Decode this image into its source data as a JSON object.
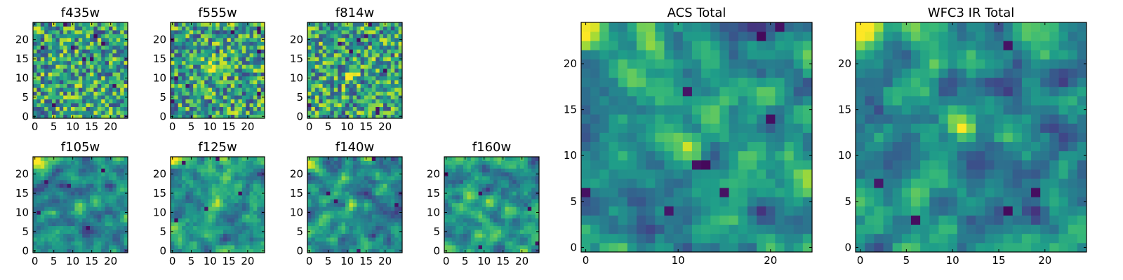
{
  "chart_data": [
    {
      "type": "heatmap",
      "title": "f435w",
      "grid_size": 25,
      "colormap": "viridis",
      "x_ticks": [
        0,
        5,
        10,
        15,
        20
      ],
      "y_ticks": [
        0,
        5,
        10,
        15,
        20
      ],
      "xlim": [
        0,
        25
      ],
      "ylim": [
        0,
        25
      ],
      "appearance": "uniform noise",
      "hotspot": null
    },
    {
      "type": "heatmap",
      "title": "f555w",
      "grid_size": 25,
      "colormap": "viridis",
      "x_ticks": [
        0,
        5,
        10,
        15,
        20
      ],
      "y_ticks": [
        0,
        5,
        10,
        15,
        20
      ],
      "xlim": [
        0,
        25
      ],
      "ylim": [
        0,
        25
      ],
      "appearance": "noise with faint central source",
      "hotspot": [
        11,
        12
      ]
    },
    {
      "type": "heatmap",
      "title": "f814w",
      "grid_size": 25,
      "colormap": "viridis",
      "x_ticks": [
        0,
        5,
        10,
        15,
        20
      ],
      "y_ticks": [
        0,
        5,
        10,
        15,
        20
      ],
      "xlim": [
        0,
        25
      ],
      "ylim": [
        0,
        25
      ],
      "appearance": "noise with central source",
      "hotspot": [
        11,
        11
      ]
    },
    {
      "type": "heatmap",
      "title": "f105w",
      "grid_size": 25,
      "colormap": "viridis",
      "x_ticks": [
        0,
        5,
        10,
        15,
        20
      ],
      "y_ticks": [
        0,
        5,
        10,
        15,
        20
      ],
      "xlim": [
        0,
        25
      ],
      "ylim": [
        0,
        25
      ],
      "appearance": "smoothed noise, bright top-left corner",
      "hotspot": [
        12,
        12
      ]
    },
    {
      "type": "heatmap",
      "title": "f125w",
      "grid_size": 25,
      "colormap": "viridis",
      "x_ticks": [
        0,
        5,
        10,
        15,
        20
      ],
      "y_ticks": [
        0,
        5,
        10,
        15,
        20
      ],
      "xlim": [
        0,
        25
      ],
      "ylim": [
        0,
        25
      ],
      "appearance": "smoothed noise, bright top-left corner",
      "hotspot": [
        12,
        12
      ]
    },
    {
      "type": "heatmap",
      "title": "f140w",
      "grid_size": 25,
      "colormap": "viridis",
      "x_ticks": [
        0,
        5,
        10,
        15,
        20
      ],
      "y_ticks": [
        0,
        5,
        10,
        15,
        20
      ],
      "xlim": [
        0,
        25
      ],
      "ylim": [
        0,
        25
      ],
      "appearance": "smoothed noise, bright top-left corner",
      "hotspot": [
        11,
        12
      ]
    },
    {
      "type": "heatmap",
      "title": "f160w",
      "grid_size": 25,
      "colormap": "viridis",
      "x_ticks": [
        0,
        5,
        10,
        15,
        20
      ],
      "y_ticks": [
        0,
        5,
        10,
        15,
        20
      ],
      "xlim": [
        0,
        25
      ],
      "ylim": [
        0,
        25
      ],
      "appearance": "smoothed noise with central source",
      "hotspot": [
        11,
        13
      ]
    },
    {
      "type": "heatmap",
      "title": "ACS Total",
      "grid_size": 25,
      "colormap": "viridis",
      "x_ticks": [
        0,
        10,
        20
      ],
      "y_ticks": [
        0,
        5,
        10,
        15,
        20
      ],
      "xlim": [
        0,
        25
      ],
      "ylim": [
        0,
        25
      ],
      "appearance": "coarse noise, bright top-left corner",
      "hotspot": [
        11,
        11
      ]
    },
    {
      "type": "heatmap",
      "title": "WFC3 IR Total",
      "grid_size": 25,
      "colormap": "viridis",
      "x_ticks": [
        0,
        5,
        10,
        15,
        20
      ],
      "y_ticks": [
        0,
        5,
        10,
        15,
        20
      ],
      "xlim": [
        0,
        25
      ],
      "ylim": [
        0,
        25
      ],
      "appearance": "smoothed noise, bright top-left corner, dark bottom-left",
      "hotspot": [
        11,
        13
      ]
    }
  ]
}
